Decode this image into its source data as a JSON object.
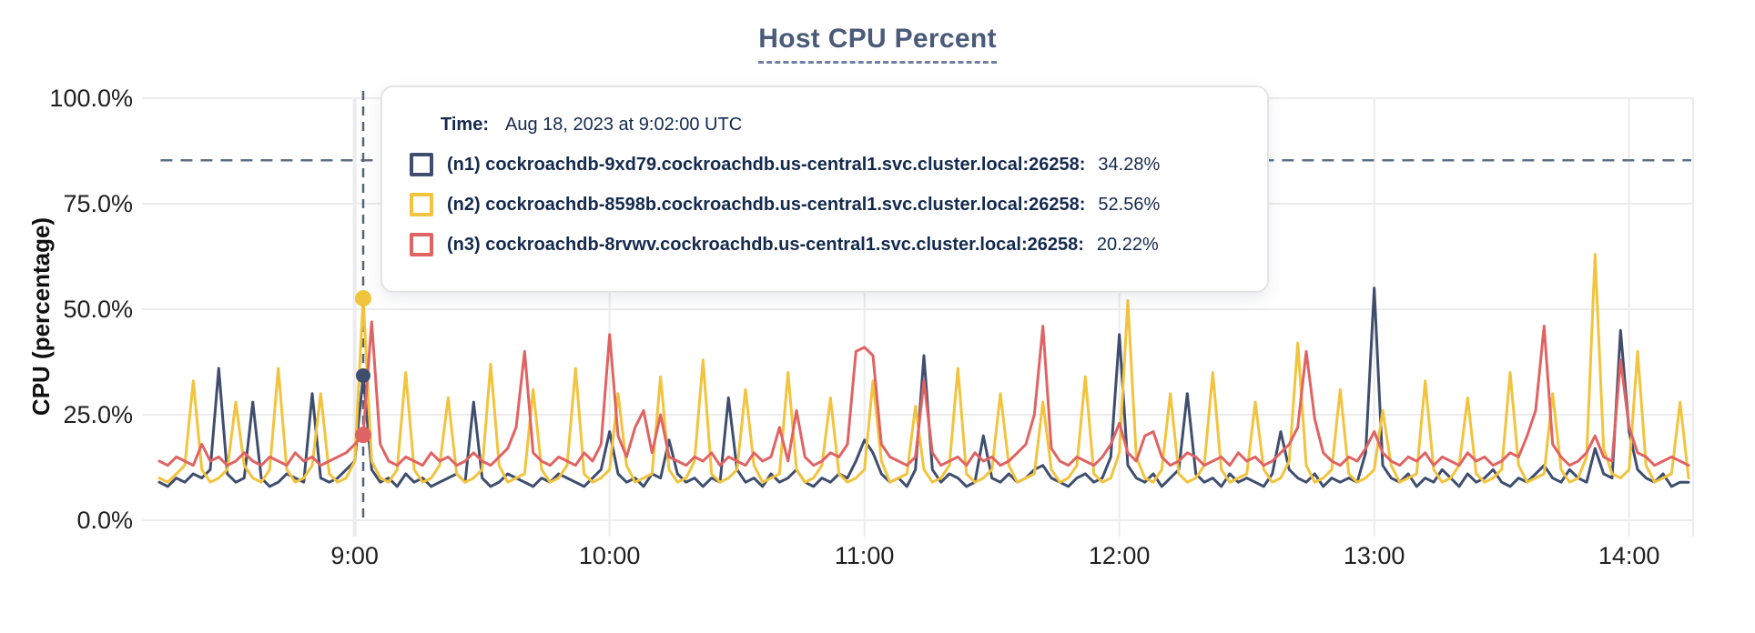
{
  "title": "Host CPU Percent",
  "tooltip": {
    "time_label": "Time:",
    "time_value": "Aug 18, 2023 at 9:02:00 UTC",
    "rows": [
      {
        "label": "(n1) cockroachdb-9xd79.cockroachdb.us-central1.svc.cluster.local:26258:",
        "value": "34.28%",
        "color": "#3F4E6E"
      },
      {
        "label": "(n2) cockroachdb-8598b.cockroachdb.us-central1.svc.cluster.local:26258:",
        "value": "52.56%",
        "color": "#F2C33D"
      },
      {
        "label": "(n3) cockroachdb-8rvwv.cockroachdb.us-central1.svc.cluster.local:26258:",
        "value": "20.22%",
        "color": "#E06363"
      }
    ]
  },
  "palette": {
    "grid": "#ECECEC",
    "threshold": "#5C7082",
    "crosshair": "#50667A",
    "title": "#4A5A78",
    "tooltip_text": "#13294D",
    "axis_text": "#1F1F1F"
  },
  "chart_data": {
    "type": "line",
    "title": "Host CPU Percent",
    "xlabel": "",
    "ylabel": "CPU (percentage)",
    "ylim": [
      0,
      100
    ],
    "grid": true,
    "start_time": "8:14",
    "sample_step_minutes": 2,
    "x_range_minutes": 360,
    "threshold_pct": 85.3,
    "y_ticks": [
      {
        "label": "100.0%",
        "pct": 100
      },
      {
        "label": "75.0%",
        "pct": 75
      },
      {
        "label": "50.0%",
        "pct": 50
      },
      {
        "label": "25.0%",
        "pct": 25
      },
      {
        "label": "0.0%",
        "pct": 0
      }
    ],
    "x_ticks": [
      {
        "label": "9:00",
        "minutes": 46
      },
      {
        "label": "10:00",
        "minutes": 106
      },
      {
        "label": "11:00",
        "minutes": 166
      },
      {
        "label": "12:00",
        "minutes": 226
      },
      {
        "label": "13:00",
        "minutes": 286
      },
      {
        "label": "14:00",
        "minutes": 346
      }
    ],
    "crosshair": {
      "minutes": 48,
      "time": "9:02",
      "points": [
        {
          "series": 1,
          "pct": 52.56
        },
        {
          "series": 0,
          "pct": 34.28
        },
        {
          "series": 2,
          "pct": 20.22
        }
      ]
    },
    "series": [
      {
        "name": "(n1) cockroachdb-9xd79.cockroachdb.us-central1.svc.cluster.local:26258",
        "color": "#3F4E6E",
        "width": 3,
        "values": [
          9,
          8,
          10,
          9,
          11,
          10,
          12,
          36,
          11,
          9,
          10,
          28,
          10,
          8,
          9,
          11,
          10,
          9,
          30,
          10,
          9,
          10,
          12,
          14,
          34.28,
          12,
          9,
          10,
          8,
          11,
          9,
          10,
          8,
          9,
          10,
          11,
          9,
          28,
          10,
          8,
          9,
          11,
          10,
          9,
          8,
          10,
          9,
          11,
          10,
          9,
          8,
          10,
          12,
          21,
          11,
          9,
          10,
          8,
          11,
          10,
          19,
          11,
          9,
          10,
          8,
          10,
          9,
          29,
          12,
          9,
          10,
          8,
          11,
          9,
          10,
          12,
          9,
          8,
          10,
          9,
          11,
          10,
          14,
          19,
          16,
          11,
          9,
          10,
          8,
          12,
          39,
          12,
          9,
          11,
          10,
          8,
          9,
          20,
          10,
          9,
          11,
          9,
          10,
          12,
          13,
          10,
          9,
          8,
          10,
          11,
          9,
          10,
          15,
          44,
          13,
          10,
          9,
          11,
          8,
          10,
          12,
          30,
          11,
          9,
          10,
          8,
          11,
          9,
          10,
          9,
          8,
          11,
          21,
          12,
          10,
          9,
          11,
          8,
          10,
          9,
          10,
          9,
          16,
          55,
          13,
          10,
          9,
          11,
          8,
          10,
          9,
          12,
          10,
          8,
          11,
          9,
          10,
          12,
          9,
          8,
          10,
          9,
          11,
          13,
          10,
          9,
          12,
          10,
          9,
          17,
          11,
          10,
          45,
          21,
          12,
          10,
          9,
          11,
          8,
          9,
          9
        ]
      },
      {
        "name": "(n2) cockroachdb-8598b.cockroachdb.us-central1.svc.cluster.local:26258",
        "color": "#F2C33D",
        "width": 3,
        "values": [
          10,
          9,
          11,
          13,
          33,
          12,
          9,
          10,
          12,
          28,
          13,
          10,
          9,
          12,
          36,
          12,
          9,
          10,
          13,
          30,
          11,
          9,
          10,
          14,
          52.56,
          14,
          10,
          9,
          12,
          35,
          12,
          9,
          10,
          13,
          29,
          11,
          9,
          10,
          12,
          37,
          13,
          9,
          10,
          11,
          31,
          12,
          9,
          10,
          13,
          36,
          11,
          9,
          10,
          12,
          30,
          13,
          9,
          10,
          11,
          34,
          12,
          9,
          10,
          14,
          38,
          11,
          9,
          10,
          12,
          31,
          13,
          9,
          10,
          11,
          35,
          12,
          9,
          10,
          13,
          29,
          11,
          9,
          10,
          12,
          33,
          14,
          9,
          10,
          11,
          27,
          12,
          9,
          10,
          13,
          36,
          11,
          9,
          10,
          12,
          30,
          13,
          9,
          10,
          11,
          28,
          12,
          9,
          10,
          13,
          34,
          11,
          9,
          10,
          16,
          52,
          15,
          10,
          9,
          12,
          30,
          11,
          9,
          10,
          13,
          35,
          12,
          9,
          10,
          11,
          28,
          12,
          9,
          10,
          14,
          42,
          13,
          9,
          10,
          12,
          31,
          11,
          9,
          10,
          12,
          26,
          13,
          9,
          10,
          11,
          33,
          12,
          9,
          10,
          13,
          29,
          11,
          9,
          10,
          12,
          35,
          13,
          9,
          10,
          11,
          30,
          12,
          9,
          10,
          15,
          63,
          17,
          11,
          10,
          12,
          40,
          13,
          9,
          10,
          11,
          28,
          10
        ]
      },
      {
        "name": "(n3) cockroachdb-8rvwv.cockroachdb.us-central1.svc.cluster.local:26258",
        "color": "#E06363",
        "width": 3,
        "values": [
          14,
          13,
          15,
          14,
          13,
          18,
          14,
          15,
          13,
          14,
          16,
          14,
          13,
          15,
          14,
          13,
          16,
          14,
          15,
          13,
          14,
          15,
          16,
          18,
          20.22,
          47,
          18,
          14,
          13,
          15,
          14,
          13,
          16,
          14,
          15,
          13,
          14,
          16,
          14,
          13,
          15,
          17,
          22,
          40,
          16,
          14,
          13,
          15,
          14,
          13,
          16,
          14,
          18,
          44,
          20,
          15,
          22,
          26,
          16,
          25,
          15,
          14,
          13,
          15,
          14,
          16,
          13,
          15,
          14,
          13,
          16,
          14,
          15,
          22,
          14,
          26,
          15,
          13,
          14,
          16,
          15,
          18,
          40,
          41,
          39,
          18,
          15,
          14,
          13,
          15,
          33,
          16,
          13,
          14,
          15,
          13,
          16,
          14,
          15,
          13,
          14,
          16,
          18,
          25,
          46,
          17,
          14,
          13,
          15,
          14,
          13,
          15,
          18,
          23,
          16,
          14,
          20,
          21,
          15,
          13,
          14,
          16,
          15,
          13,
          14,
          15,
          13,
          16,
          14,
          15,
          13,
          14,
          16,
          18,
          22,
          40,
          24,
          16,
          14,
          13,
          15,
          14,
          17,
          21,
          16,
          14,
          13,
          15,
          14,
          16,
          13,
          15,
          14,
          13,
          16,
          14,
          15,
          13,
          14,
          16,
          15,
          20,
          26,
          46,
          18,
          15,
          13,
          14,
          16,
          20,
          15,
          14,
          38,
          22,
          16,
          15,
          13,
          14,
          15,
          14,
          13
        ]
      }
    ]
  }
}
